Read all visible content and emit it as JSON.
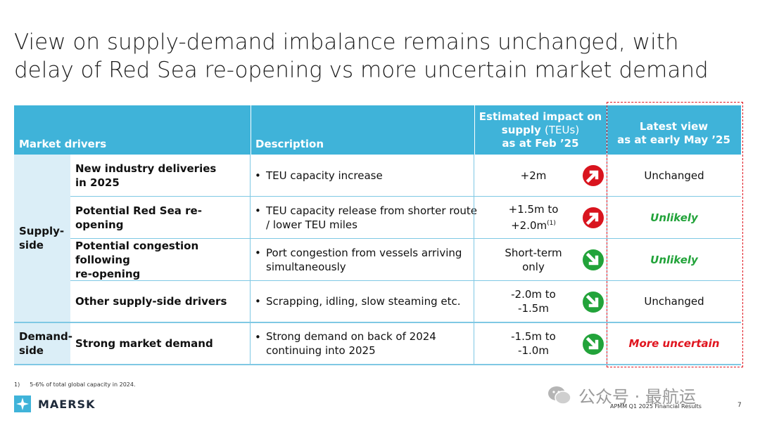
{
  "title": {
    "line1": "View on supply-demand imbalance remains unchanged, with",
    "line2": "delay of Red Sea re-opening vs more uncertain market demand"
  },
  "table": {
    "headers": {
      "drivers": "Market drivers",
      "description": "Description",
      "impact_l1": "Estimated impact on",
      "impact_l2a": "supply",
      "impact_unit": "(TEUs)",
      "impact_l3": "as at Feb ’25",
      "latest_l1": "Latest view",
      "latest_l2": "as at early May ’25"
    },
    "groups": [
      {
        "label_l1": "Supply-",
        "label_l2": "side"
      },
      {
        "label_l1": "Demand-",
        "label_l2": "side"
      }
    ],
    "rows": [
      {
        "name_l1": "New industry deliveries",
        "name_l2": "in 2025",
        "desc_l1": "TEU capacity increase",
        "desc_l2": "",
        "impact_l1": "+2m",
        "impact_l2": "",
        "impact_sup": "",
        "direction": "up-red-arrow-icon",
        "view": "Unchanged"
      },
      {
        "name_l1": "Potential Red Sea re-opening",
        "name_l2": "",
        "desc_l1": "TEU capacity release from shorter route",
        "desc_l2": "/ lower TEU miles",
        "impact_l1": "+1.5m to",
        "impact_l2": "+2.0m",
        "impact_sup": "(1)",
        "direction": "up-red-arrow-icon",
        "view": "Unlikely"
      },
      {
        "name_l1": "Potential congestion following",
        "name_l2": "re-opening",
        "desc_l1": "Port congestion from vessels arriving",
        "desc_l2": "simultaneously",
        "impact_l1": "Short-term",
        "impact_l2": "only",
        "impact_sup": "",
        "direction": "down-green-arrow-icon",
        "view": "Unlikely"
      },
      {
        "name_l1": "Other supply-side drivers",
        "name_l2": "",
        "desc_l1": "Scrapping, idling, slow steaming etc.",
        "desc_l2": "",
        "impact_l1": "-2.0m to",
        "impact_l2": "-1.5m",
        "impact_sup": "",
        "direction": "down-green-arrow-icon",
        "view": "Unchanged"
      },
      {
        "name_l1": "Strong market demand",
        "name_l2": "",
        "desc_l1": "Strong demand on back of 2024",
        "desc_l2": "continuing into 2025",
        "impact_l1": "-1.5m to",
        "impact_l2": "-1.0m",
        "impact_sup": "",
        "direction": "down-green-arrow-icon",
        "view": "More uncertain"
      }
    ],
    "bullet": "•"
  },
  "colors": {
    "header_bg": "#3fb3d9",
    "group_bg": "#dbeef7",
    "up_arrow": "#d9141e",
    "down_arrow": "#22a33a",
    "unlikely_text": "#22a33a",
    "uncertain_text": "#e0141e"
  },
  "footnote": {
    "num": "1)",
    "text": "5-6% of total global capacity in 2024."
  },
  "logo": {
    "icon": "maersk-star-icon",
    "name": "MAERSK"
  },
  "watermark": {
    "text": "公众号 · 最航运"
  },
  "footer": {
    "report": "APMM Q1 2025 Financial Results",
    "page": "7"
  }
}
